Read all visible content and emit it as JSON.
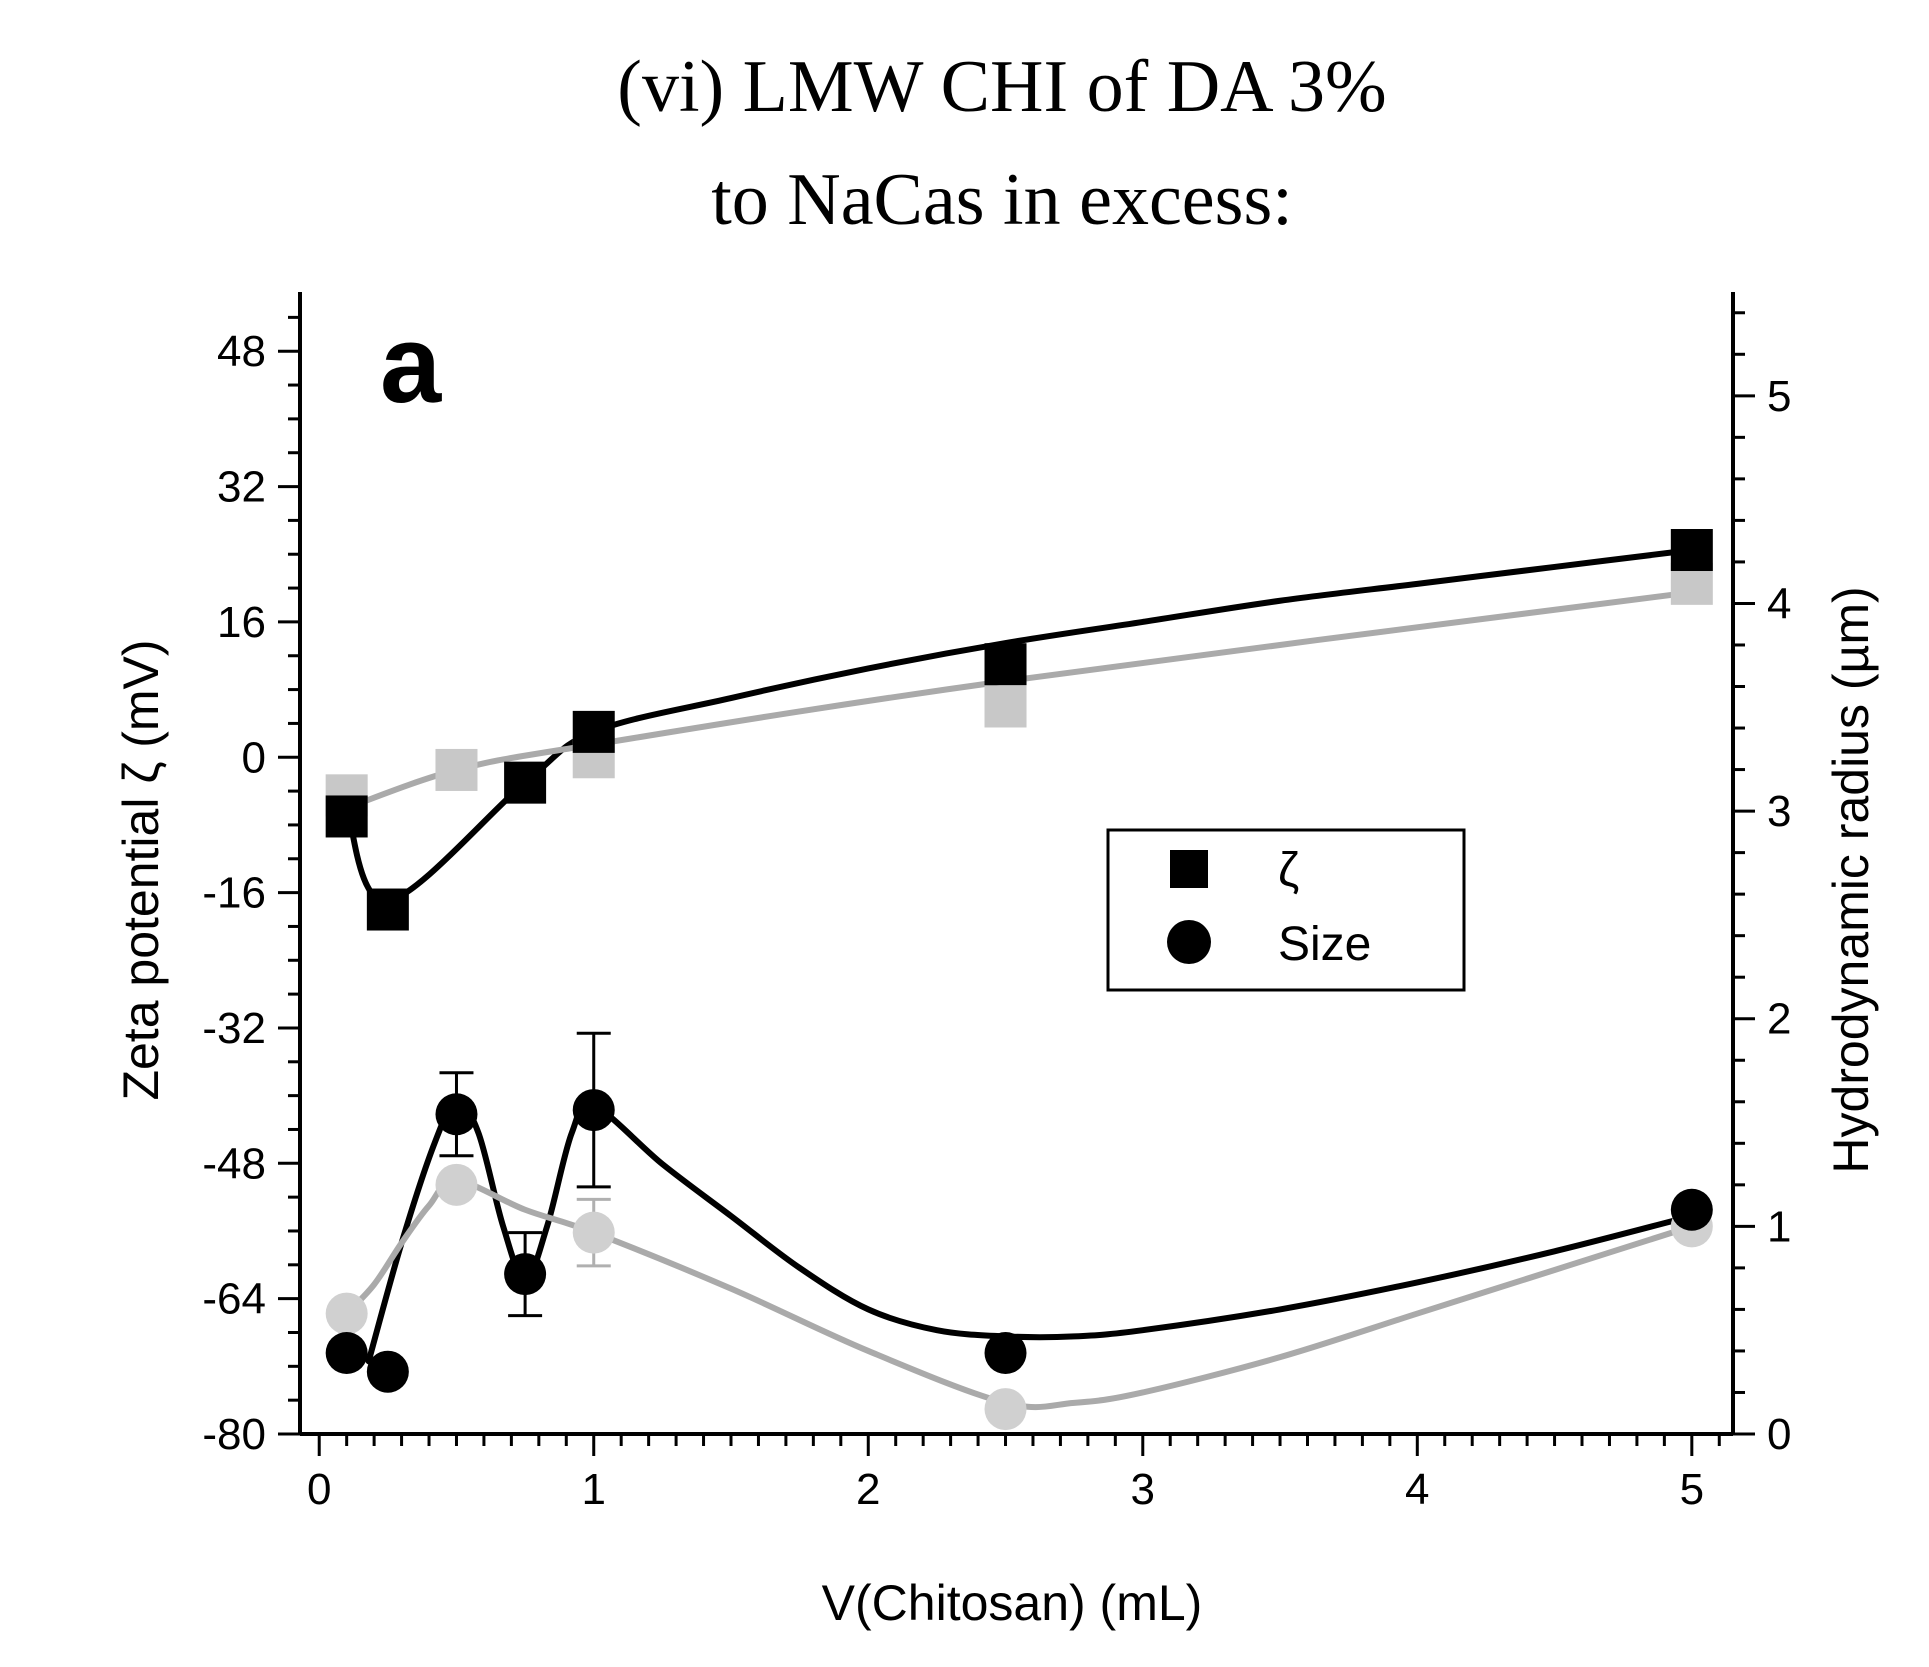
{
  "chart_data": {
    "type": "line",
    "title_lines": [
      "(vi) LMW CHI of DA 3%",
      "to NaCas in excess:"
    ],
    "panel_label": "a",
    "xlabel": "V(Chitosan) (mL)",
    "ylabel_left": "Zeta potential ζ (mV)",
    "ylabel_right": "Hydrodynamic radius (µm)",
    "xlim": [
      -0.07,
      5.15
    ],
    "ylim_left": [
      -80,
      55
    ],
    "ylim_right": [
      0,
      5.5
    ],
    "x_ticks": [
      "0",
      "1",
      "2",
      "3",
      "4",
      "5"
    ],
    "y_left_ticks": [
      "48",
      "32",
      "16",
      "0",
      "-16",
      "-32",
      "-48",
      "-64",
      "-80"
    ],
    "y_right_ticks": [
      "5",
      "4",
      "3",
      "2",
      "1",
      "0"
    ],
    "legend": [
      {
        "label": "ζ",
        "marker": "square"
      },
      {
        "label": "Size",
        "marker": "circle"
      }
    ],
    "series": [
      {
        "name": "ζ (black)",
        "axis": "left",
        "marker": "square",
        "color": "#000000",
        "x": [
          0.1,
          0.25,
          0.75,
          1.0,
          2.5,
          5.0
        ],
        "y": [
          -7,
          -18,
          -3,
          3,
          11,
          24.5
        ],
        "err": [
          1,
          0,
          0,
          0,
          0,
          0
        ]
      },
      {
        "name": "ζ (grey)",
        "axis": "left",
        "marker": "square",
        "color": "#c8c8c8",
        "x": [
          0.1,
          0.5,
          1.0,
          2.5,
          5.0
        ],
        "y": [
          -4.5,
          -1.5,
          0,
          6,
          20.5
        ],
        "err": [
          1,
          1,
          0,
          0,
          0
        ]
      },
      {
        "name": "Size (black)",
        "axis": "right",
        "marker": "circle",
        "color": "#000000",
        "x": [
          0.1,
          0.25,
          0.5,
          0.75,
          1.0,
          2.5,
          5.0
        ],
        "y": [
          0.39,
          0.3,
          1.54,
          0.77,
          1.56,
          0.39,
          1.08
        ],
        "err": [
          0,
          0,
          0.2,
          0.2,
          0.37,
          0,
          0
        ]
      },
      {
        "name": "Size (grey)",
        "axis": "right",
        "marker": "circle",
        "color": "#d0d0d0",
        "x": [
          0.1,
          0.5,
          1.0,
          2.5,
          5.0
        ],
        "y": [
          0.58,
          1.2,
          0.97,
          0.12,
          1.0
        ],
        "err": [
          0,
          0,
          0.16,
          0,
          0.05
        ]
      }
    ],
    "curves": [
      {
        "name": "ζ black fit",
        "axis": "left",
        "color": "#000000",
        "x": [
          0.1,
          0.25,
          0.75,
          1.0,
          1.5,
          2.0,
          2.5,
          3.0,
          3.5,
          4.0,
          4.5,
          5.0
        ],
        "y": [
          -6,
          -17,
          -3,
          3,
          7,
          10.5,
          13.5,
          16,
          18.5,
          20.5,
          22.5,
          24.5
        ]
      },
      {
        "name": "ζ grey fit",
        "axis": "left",
        "color": "#aaaaaa",
        "x": [
          0.1,
          0.5,
          1.0,
          2.5,
          5.0
        ],
        "y": [
          -6,
          -1.5,
          1.5,
          9,
          19.5
        ]
      },
      {
        "name": "Size black fit",
        "axis": "right",
        "color": "#000000",
        "x": [
          0.18,
          0.3,
          0.42,
          0.5,
          0.58,
          0.67,
          0.75,
          0.83,
          0.92,
          1.0,
          1.25,
          1.5,
          1.75,
          2.0,
          2.25,
          2.5,
          2.75,
          3.0,
          3.5,
          4.0,
          4.5,
          5.0
        ],
        "y": [
          0.35,
          0.92,
          1.4,
          1.6,
          1.45,
          1.0,
          0.74,
          1.0,
          1.45,
          1.58,
          1.3,
          1.05,
          0.8,
          0.6,
          0.5,
          0.47,
          0.47,
          0.5,
          0.6,
          0.73,
          0.88,
          1.05
        ]
      },
      {
        "name": "Size grey fit",
        "axis": "right",
        "color": "#aaaaaa",
        "x": [
          0.1,
          0.2,
          0.3,
          0.4,
          0.5,
          0.75,
          1.0,
          1.5,
          2.0,
          2.5,
          2.75,
          3.0,
          3.5,
          4.0,
          4.5,
          5.0
        ],
        "y": [
          0.58,
          0.72,
          0.92,
          1.1,
          1.22,
          1.08,
          0.97,
          0.7,
          0.4,
          0.15,
          0.15,
          0.2,
          0.37,
          0.58,
          0.79,
          1.0
        ]
      }
    ]
  }
}
